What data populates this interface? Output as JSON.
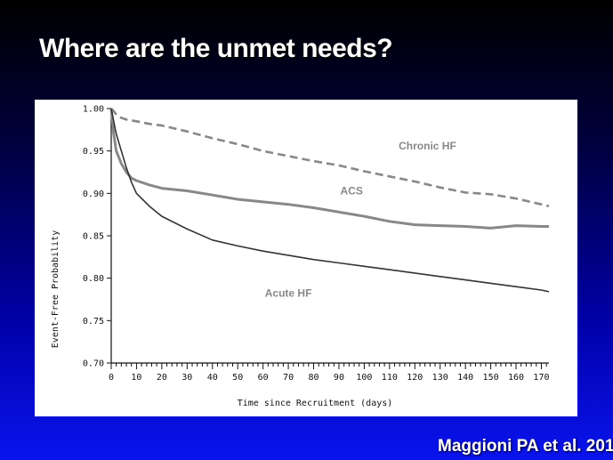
{
  "slide": {
    "title": "Where are the unmet needs?",
    "citation": "Maggioni PA et al. 201"
  },
  "chart_data": {
    "type": "line",
    "title": "",
    "xlabel": "Time since Recruitment (days)",
    "ylabel": "Event-Free Probability",
    "xlim": [
      0,
      173
    ],
    "ylim": [
      0.7,
      1.0
    ],
    "xticks": [
      0,
      10,
      20,
      30,
      40,
      50,
      60,
      70,
      80,
      90,
      100,
      110,
      120,
      130,
      140,
      150,
      160,
      170
    ],
    "yticks": [
      "0.70",
      "0.75",
      "0.80",
      "0.85",
      "0.90",
      "0.95",
      "1.00"
    ],
    "grid": false,
    "series": [
      {
        "name": "Chronic HF",
        "color": "#888888",
        "style": "dashed",
        "x": [
          0,
          1,
          2,
          4,
          6,
          10,
          15,
          20,
          30,
          40,
          50,
          60,
          70,
          80,
          90,
          100,
          110,
          120,
          130,
          140,
          150,
          160,
          170,
          173
        ],
        "y": [
          1.0,
          0.997,
          0.993,
          0.989,
          0.987,
          0.985,
          0.982,
          0.98,
          0.973,
          0.965,
          0.958,
          0.95,
          0.944,
          0.938,
          0.933,
          0.926,
          0.92,
          0.914,
          0.907,
          0.901,
          0.899,
          0.894,
          0.887,
          0.885
        ]
      },
      {
        "name": "ACS",
        "color": "#888888",
        "style": "solid",
        "x": [
          0,
          1,
          2,
          4,
          6,
          8,
          10,
          15,
          20,
          30,
          40,
          50,
          60,
          70,
          80,
          90,
          100,
          110,
          120,
          130,
          140,
          150,
          160,
          170,
          173
        ],
        "y": [
          1.0,
          0.97,
          0.95,
          0.935,
          0.925,
          0.918,
          0.915,
          0.91,
          0.906,
          0.903,
          0.898,
          0.893,
          0.89,
          0.887,
          0.883,
          0.878,
          0.873,
          0.867,
          0.863,
          0.862,
          0.861,
          0.859,
          0.862,
          0.861,
          0.861
        ]
      },
      {
        "name": "Acute HF",
        "color": "#333333",
        "style": "solid",
        "x": [
          0,
          1,
          2,
          4,
          6,
          8,
          10,
          15,
          20,
          30,
          40,
          50,
          60,
          70,
          80,
          90,
          100,
          110,
          120,
          130,
          140,
          150,
          160,
          170,
          173
        ],
        "y": [
          1.0,
          0.985,
          0.97,
          0.95,
          0.93,
          0.913,
          0.9,
          0.885,
          0.873,
          0.858,
          0.845,
          0.838,
          0.832,
          0.827,
          0.822,
          0.818,
          0.814,
          0.81,
          0.806,
          0.802,
          0.798,
          0.794,
          0.79,
          0.786,
          0.784
        ]
      }
    ]
  }
}
